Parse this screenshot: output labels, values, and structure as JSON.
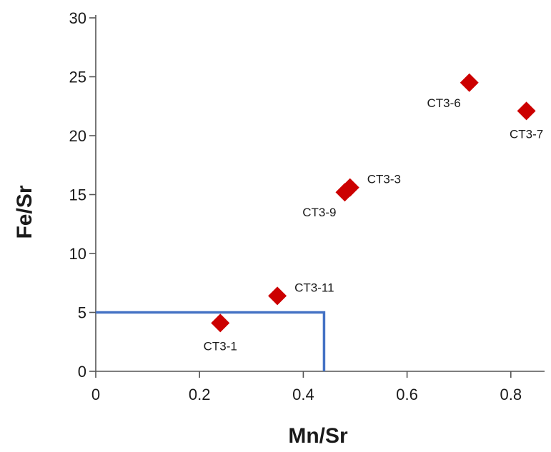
{
  "chart_data": {
    "type": "scatter",
    "xlabel": "Mn/Sr",
    "ylabel": "Fe/Sr",
    "xlim": [
      0,
      0.85
    ],
    "ylim": [
      0,
      30
    ],
    "xticks": [
      0,
      0.2,
      0.4,
      0.6,
      0.8
    ],
    "xtick_labels": [
      "0",
      "0.2",
      "0.4",
      "0.6",
      "0.8"
    ],
    "yticks": [
      0,
      5,
      10,
      15,
      20,
      25,
      30
    ],
    "ytick_labels": [
      "0",
      "5",
      "10",
      "15",
      "20",
      "25",
      "30"
    ],
    "grid": false,
    "series": [
      {
        "marker": "diamond",
        "color": "#cc0000",
        "points": [
          {
            "label": "CT3-1",
            "x": 0.24,
            "y": 4.1,
            "label_pos": "below"
          },
          {
            "label": "CT3-11",
            "x": 0.35,
            "y": 6.4,
            "label_pos": "upper-right"
          },
          {
            "label": "CT3-9",
            "x": 0.48,
            "y": 15.2,
            "label_pos": "lower-left"
          },
          {
            "label": "CT3-3",
            "x": 0.49,
            "y": 15.6,
            "label_pos": "upper-right"
          },
          {
            "label": "CT3-6",
            "x": 0.72,
            "y": 24.5,
            "label_pos": "lower-left"
          },
          {
            "label": "CT3-7",
            "x": 0.83,
            "y": 22.1,
            "label_pos": "below"
          }
        ]
      }
    ],
    "reference_lines": [
      {
        "color": "#4472c4",
        "points": [
          [
            0,
            5
          ],
          [
            0.44,
            5
          ],
          [
            0.44,
            0
          ]
        ]
      }
    ]
  }
}
